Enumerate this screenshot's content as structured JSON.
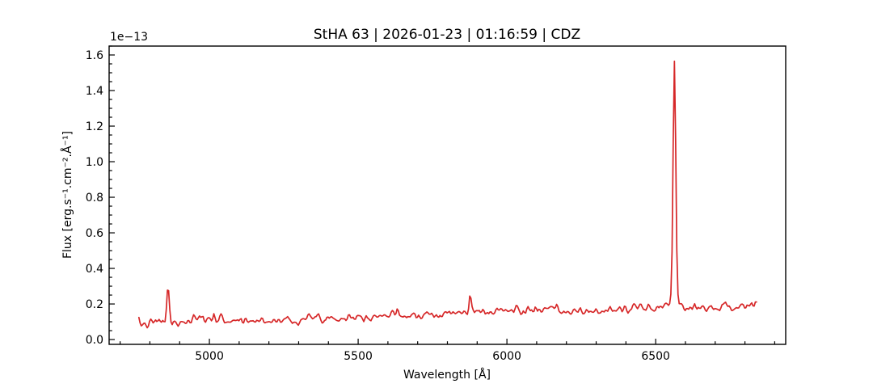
{
  "chart_data": {
    "type": "line",
    "title": "StHA 63 | 2026-01-23 | 01:16:59 | CDZ",
    "xlabel": "Wavelength [Å]",
    "ylabel": "Flux [erg.s⁻¹.cm⁻².Å⁻¹]",
    "offset_text": "1e−13",
    "flux_unit_scale": "1e-13",
    "line_color": "#d62728",
    "axis_color": "#000000",
    "background_color": "#ffffff",
    "xlim": [
      4663,
      6937
    ],
    "ylim": [
      -0.027,
      1.65
    ],
    "xticks": [
      5000,
      5500,
      6000,
      6500
    ],
    "yticks": [
      0.0,
      0.2,
      0.4,
      0.6,
      0.8,
      1.0,
      1.2,
      1.4,
      1.6
    ],
    "x_minor_step": 100,
    "y_minor_step": 0.05,
    "grid": false,
    "legend": "none",
    "tick_direction": "in",
    "wavelength_range": [
      4763,
      6842
    ],
    "sample_step": 4,
    "random_seed": 7,
    "noise_sigma": 0.012,
    "continuum_points": [
      [
        4763,
        0.085
      ],
      [
        4800,
        0.09
      ],
      [
        4840,
        0.1
      ],
      [
        4890,
        0.085
      ],
      [
        4950,
        0.11
      ],
      [
        5000,
        0.115
      ],
      [
        5060,
        0.108
      ],
      [
        5150,
        0.105
      ],
      [
        5250,
        0.11
      ],
      [
        5350,
        0.12
      ],
      [
        5450,
        0.125
      ],
      [
        5550,
        0.135
      ],
      [
        5650,
        0.14
      ],
      [
        5750,
        0.145
      ],
      [
        5850,
        0.15
      ],
      [
        5950,
        0.16
      ],
      [
        6050,
        0.165
      ],
      [
        6150,
        0.165
      ],
      [
        6230,
        0.152
      ],
      [
        6300,
        0.16
      ],
      [
        6400,
        0.172
      ],
      [
        6500,
        0.182
      ],
      [
        6600,
        0.185
      ],
      [
        6700,
        0.183
      ],
      [
        6800,
        0.188
      ],
      [
        6842,
        0.195
      ]
    ],
    "emission_lines": [
      {
        "center": 4861,
        "amplitude": 0.21,
        "sigma": 4.0
      },
      {
        "center": 5016,
        "amplitude": 0.045,
        "sigma": 3.5
      },
      {
        "center": 5876,
        "amplitude": 0.105,
        "sigma": 3.5
      },
      {
        "center": 6563,
        "amplitude": 1.33,
        "sigma": 4.5
      },
      {
        "center": 6563,
        "amplitude": 0.05,
        "sigma": 14.0
      }
    ],
    "emission_peaks_readoff": [
      {
        "wavelength": 4861,
        "peak_flux_1e13": 0.31
      },
      {
        "wavelength": 5016,
        "peak_flux_1e13": 0.16
      },
      {
        "wavelength": 5876,
        "peak_flux_1e13": 0.26
      },
      {
        "wavelength": 6563,
        "peak_flux_1e13": 1.57
      }
    ]
  }
}
